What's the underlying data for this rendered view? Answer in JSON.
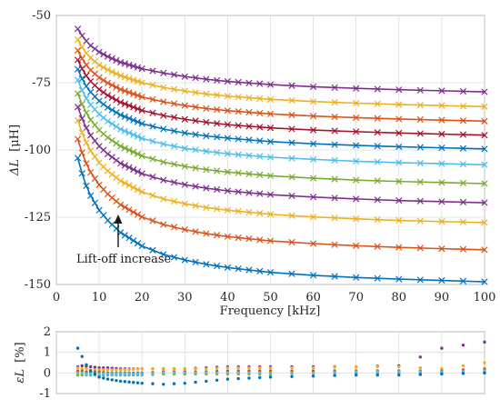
{
  "chart_data": [
    {
      "type": "line",
      "xlabel": "Frequency [kHz]",
      "ylabel_symbol": "ΔL",
      "ylabel_unit": "[μH]",
      "xlim": [
        0,
        100
      ],
      "ylim": [
        -150,
        -50
      ],
      "xticks": [
        "0",
        "10",
        "20",
        "30",
        "40",
        "50",
        "60",
        "70",
        "80",
        "90",
        "100"
      ],
      "yticks": [
        "-150",
        "-125",
        "-100",
        "-75",
        "-50"
      ],
      "grid": true,
      "annotation": "Lift-off increase",
      "x": [
        5,
        6,
        7,
        8,
        10,
        12,
        15,
        20,
        25,
        30,
        35,
        40,
        50,
        60,
        70,
        80,
        90,
        100
      ],
      "series": [
        {
          "color": "#7E2F8E",
          "values": [
            -55.0,
            -57.5,
            -59.5,
            -61.2,
            -63.6,
            -65.3,
            -67.4,
            -69.8,
            -71.4,
            -72.7,
            -73.7,
            -74.5,
            -75.7,
            -76.5,
            -77.1,
            -77.6,
            -78.0,
            -78.4
          ]
        },
        {
          "color": "#EDB120",
          "values": [
            -59.0,
            -61.8,
            -64.0,
            -65.8,
            -68.4,
            -70.2,
            -72.4,
            -75.0,
            -76.8,
            -78.1,
            -79.2,
            -80.0,
            -81.2,
            -82.0,
            -82.6,
            -83.1,
            -83.5,
            -83.9
          ]
        },
        {
          "color": "#D95319",
          "values": [
            -63.0,
            -66.0,
            -68.4,
            -70.3,
            -73.1,
            -75.1,
            -77.5,
            -80.3,
            -82.1,
            -83.5,
            -84.6,
            -85.4,
            -86.6,
            -87.4,
            -88.0,
            -88.5,
            -88.9,
            -89.3
          ]
        },
        {
          "color": "#A2142F",
          "values": [
            -66.5,
            -69.8,
            -72.4,
            -74.5,
            -77.5,
            -79.7,
            -82.3,
            -85.3,
            -87.2,
            -88.6,
            -89.7,
            -90.6,
            -91.8,
            -92.6,
            -93.2,
            -93.7,
            -94.1,
            -94.5
          ]
        },
        {
          "color": "#0072BD",
          "values": [
            -70.0,
            -73.5,
            -76.3,
            -78.5,
            -81.8,
            -84.2,
            -87.0,
            -90.2,
            -92.2,
            -93.7,
            -94.8,
            -95.6,
            -96.9,
            -97.7,
            -98.3,
            -98.8,
            -99.2,
            -99.6
          ]
        },
        {
          "color": "#4DBEEE",
          "values": [
            -74.0,
            -77.8,
            -80.8,
            -83.2,
            -86.7,
            -89.3,
            -92.3,
            -95.7,
            -97.8,
            -99.4,
            -100.5,
            -101.4,
            -102.7,
            -103.5,
            -104.2,
            -104.7,
            -105.1,
            -105.5
          ]
        },
        {
          "color": "#77AC30",
          "values": [
            -79.0,
            -83.0,
            -86.2,
            -88.8,
            -92.6,
            -95.4,
            -98.6,
            -102.2,
            -104.5,
            -106.1,
            -107.3,
            -108.2,
            -109.6,
            -110.5,
            -111.2,
            -111.7,
            -112.1,
            -112.5
          ]
        },
        {
          "color": "#7E2F8E",
          "values": [
            -84.0,
            -88.3,
            -91.8,
            -94.6,
            -98.6,
            -101.5,
            -105.0,
            -108.8,
            -111.2,
            -112.9,
            -114.2,
            -115.2,
            -116.6,
            -117.5,
            -118.2,
            -118.8,
            -119.2,
            -119.6
          ]
        },
        {
          "color": "#EDB120",
          "values": [
            -89.0,
            -93.6,
            -97.3,
            -100.3,
            -104.7,
            -107.8,
            -111.5,
            -115.6,
            -118.2,
            -120.0,
            -121.4,
            -122.4,
            -123.9,
            -124.9,
            -125.6,
            -126.2,
            -126.6,
            -127.0
          ]
        },
        {
          "color": "#D95319",
          "values": [
            -96.0,
            -101.0,
            -105.0,
            -108.3,
            -113.0,
            -116.4,
            -120.4,
            -124.9,
            -127.7,
            -129.6,
            -131.1,
            -132.2,
            -133.8,
            -134.8,
            -135.6,
            -136.2,
            -136.7,
            -137.1
          ]
        },
        {
          "color": "#0072BD",
          "values": [
            -103.0,
            -108.7,
            -113.3,
            -117.0,
            -122.4,
            -126.2,
            -130.7,
            -135.7,
            -138.8,
            -140.9,
            -142.5,
            -143.7,
            -145.5,
            -146.6,
            -147.4,
            -148.0,
            -148.5,
            -149.0
          ]
        }
      ]
    },
    {
      "type": "scatter",
      "ylabel_symbol": "εL",
      "ylabel_unit": "[%]",
      "xlim": [
        0,
        100
      ],
      "ylim": [
        -1,
        2
      ],
      "yticks": [
        "-1",
        "0",
        "1",
        "2"
      ],
      "grid": true,
      "x": [
        5,
        6,
        7,
        8,
        10,
        12,
        15,
        20,
        25,
        30,
        35,
        40,
        50,
        60,
        70,
        80,
        90,
        100
      ],
      "series": [
        {
          "color": "#7E2F8E",
          "values": [
            0.3,
            0.35,
            0.3,
            0.3,
            0.25,
            0.25,
            0.2,
            0.2,
            0.2,
            0.2,
            0.25,
            0.3,
            0.3,
            0.3,
            0.3,
            0.35,
            1.2,
            1.5
          ]
        },
        {
          "color": "#EDB120",
          "values": [
            0.25,
            0.2,
            0.2,
            0.15,
            0.15,
            0.15,
            0.15,
            0.2,
            0.2,
            0.2,
            0.2,
            0.25,
            0.25,
            0.25,
            0.3,
            0.3,
            0.2,
            0.5
          ]
        },
        {
          "color": "#D95319",
          "values": [
            0.1,
            0.1,
            0.05,
            0.05,
            0.05,
            0.0,
            0.0,
            0.0,
            0.05,
            0.05,
            0.05,
            0.1,
            0.1,
            0.1,
            0.1,
            0.1,
            0.1,
            0.2
          ]
        },
        {
          "color": "#77AC30",
          "values": [
            -0.1,
            -0.1,
            -0.1,
            -0.1,
            -0.1,
            -0.1,
            -0.1,
            -0.1,
            -0.05,
            -0.05,
            -0.05,
            -0.05,
            -0.05,
            0.0,
            0.0,
            0.0,
            0.0,
            0.0
          ]
        },
        {
          "color": "#4DBEEE",
          "values": [
            0.0,
            0.0,
            -0.05,
            -0.05,
            -0.05,
            -0.05,
            -0.05,
            -0.05,
            0.0,
            0.0,
            0.0,
            0.0,
            0.0,
            0.0,
            0.05,
            0.05,
            0.05,
            0.1
          ]
        },
        {
          "color": "#0072BD",
          "values": [
            1.2,
            0.8,
            0.4,
            0.1,
            -0.2,
            -0.3,
            -0.4,
            -0.5,
            -0.55,
            -0.5,
            -0.4,
            -0.3,
            -0.2,
            -0.15,
            -0.1,
            -0.1,
            -0.05,
            0.0
          ]
        }
      ]
    }
  ]
}
